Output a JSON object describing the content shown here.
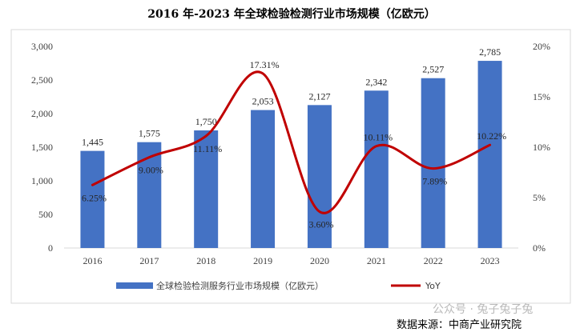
{
  "colors": {
    "bar": "#4472C4",
    "line": "#C00000",
    "frame": "#d9d9d9",
    "text": "#404040"
  },
  "chart_data": {
    "type": "bar",
    "title": "2016 年-2023 年全球检验检测行业市场规模（亿欧元）",
    "categories": [
      "2016",
      "2017",
      "2018",
      "2019",
      "2020",
      "2021",
      "2022",
      "2023"
    ],
    "series": [
      {
        "name": "全球检验检测服务行业市场规模（亿欧元）",
        "type": "bar",
        "axis": "left",
        "values": [
          1445,
          1575,
          1750,
          2053,
          2127,
          2342,
          2527,
          2785
        ],
        "labels": [
          "1,445",
          "1,575",
          "1,750",
          "2,053",
          "2,127",
          "2,342",
          "2,527",
          "2,785"
        ]
      },
      {
        "name": "YoY",
        "type": "line",
        "smooth": true,
        "axis": "right",
        "values": [
          6.25,
          9.0,
          11.11,
          17.31,
          3.6,
          10.11,
          7.89,
          10.22
        ],
        "labels": [
          "6.25%",
          "9.00%",
          "11.11%",
          "17.31%",
          "3.60%",
          "10.11%",
          "7.89%",
          "10.22%"
        ]
      }
    ],
    "ylim_left": [
      0,
      3000
    ],
    "yticks_left": [
      "0",
      "500",
      "1,000",
      "1,500",
      "2,000",
      "2,500",
      "3,000"
    ],
    "ylim_right": [
      0,
      20
    ],
    "yticks_right": [
      "0%",
      "5%",
      "10%",
      "15%",
      "20%"
    ],
    "grid": false,
    "legend_position": "bottom"
  },
  "footer": {
    "source": "数据来源：中商产业研究院",
    "watermark": "公众号 · 兔子兔子兔"
  }
}
